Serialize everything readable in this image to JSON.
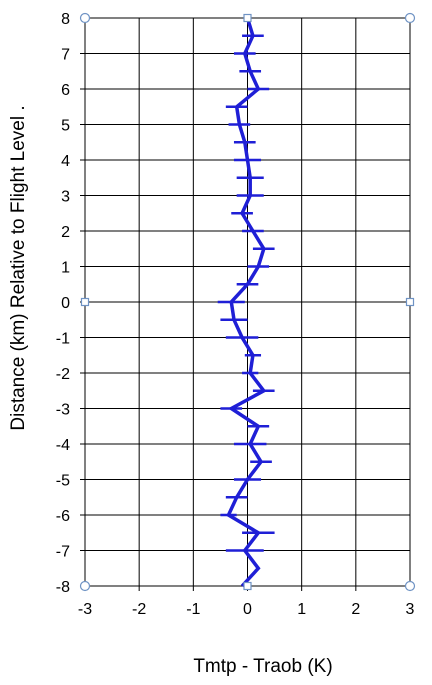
{
  "chart_data": {
    "type": "line",
    "title": "",
    "xlabel": "Tmtp - Traob (K)",
    "ylabel": "Distance  (km) Relative to Flight Level .",
    "xlim": [
      -3,
      3
    ],
    "ylim": [
      -8,
      8
    ],
    "x_ticks": [
      "-3",
      "-2",
      "-1",
      "0",
      "1",
      "2",
      "3"
    ],
    "y_ticks": [
      "8",
      "7",
      "6",
      "5",
      "4",
      "3",
      "2",
      "1",
      "0",
      "-1",
      "-2",
      "-3",
      "-4",
      "-5",
      "-6",
      "-7",
      "-8"
    ],
    "grid": true,
    "legend": "none",
    "series": [
      {
        "points": [
          {
            "y": 8.0,
            "x": 0.0
          },
          {
            "y": 7.5,
            "x": 0.1,
            "err": 0.2
          },
          {
            "y": 7.0,
            "x": -0.05,
            "err": 0.2
          },
          {
            "y": 6.5,
            "x": 0.05,
            "err": 0.2
          },
          {
            "y": 6.0,
            "x": 0.2,
            "err": 0.2
          },
          {
            "y": 5.5,
            "x": -0.2,
            "err": 0.2
          },
          {
            "y": 5.0,
            "x": -0.15,
            "err": 0.2
          },
          {
            "y": 4.5,
            "x": -0.05,
            "err": 0.2
          },
          {
            "y": 4.0,
            "x": 0.0,
            "err": 0.25
          },
          {
            "y": 3.5,
            "x": 0.05,
            "err": 0.25
          },
          {
            "y": 3.0,
            "x": 0.05,
            "err": 0.25
          },
          {
            "y": 2.5,
            "x": -0.1,
            "err": 0.2
          },
          {
            "y": 2.0,
            "x": 0.1,
            "err": 0.2
          },
          {
            "y": 1.5,
            "x": 0.3,
            "err": 0.2
          },
          {
            "y": 1.0,
            "x": 0.2,
            "err": 0.2
          },
          {
            "y": 0.5,
            "x": 0.0,
            "err": 0.2
          },
          {
            "y": 0.0,
            "x": -0.3,
            "err": 0.25
          },
          {
            "y": -0.5,
            "x": -0.25,
            "err": 0.25
          },
          {
            "y": -1.0,
            "x": -0.1,
            "err": 0.3
          },
          {
            "y": -1.5,
            "x": 0.1,
            "err": 0.15
          },
          {
            "y": -2.0,
            "x": 0.05,
            "err": 0.15
          },
          {
            "y": -2.5,
            "x": 0.3,
            "err": 0.2
          },
          {
            "y": -3.0,
            "x": -0.3,
            "err": 0.2
          },
          {
            "y": -3.5,
            "x": 0.2,
            "err": 0.2
          },
          {
            "y": -4.0,
            "x": 0.05,
            "err": 0.3
          },
          {
            "y": -4.5,
            "x": 0.25,
            "err": 0.2
          },
          {
            "y": -5.0,
            "x": 0.0,
            "err": 0.25
          },
          {
            "y": -5.5,
            "x": -0.2,
            "err": 0.2
          },
          {
            "y": -6.0,
            "x": -0.35,
            "err": 0.15
          },
          {
            "y": -6.5,
            "x": 0.2,
            "err": 0.3
          },
          {
            "y": -7.0,
            "x": -0.05,
            "err": 0.35
          },
          {
            "y": -7.5,
            "x": 0.2
          },
          {
            "y": -8.0,
            "x": -0.1
          }
        ]
      }
    ],
    "colors": {
      "series": "#1f1fd6",
      "grid": "#000000",
      "handles": "#6f93c4"
    }
  }
}
